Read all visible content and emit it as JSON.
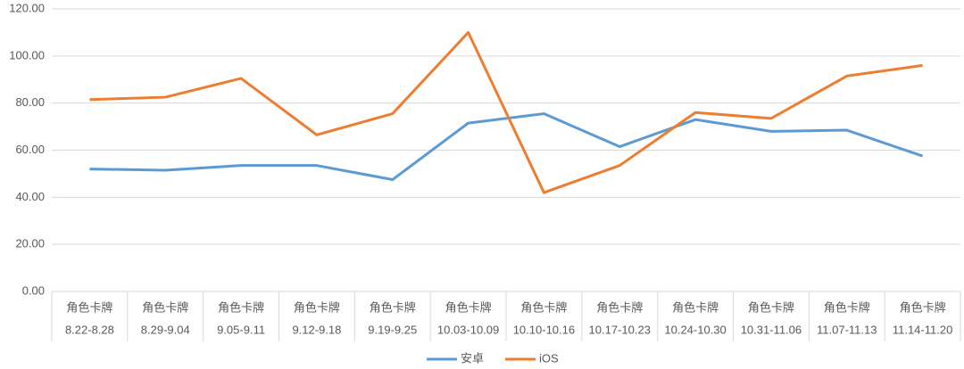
{
  "chart_data": {
    "type": "line",
    "categories": [
      [
        "角色卡牌",
        "8.22-8.28"
      ],
      [
        "角色卡牌",
        "8.29-9.04"
      ],
      [
        "角色卡牌",
        "9.05-9.11"
      ],
      [
        "角色卡牌",
        "9.12-9.18"
      ],
      [
        "角色卡牌",
        "9.19-9.25"
      ],
      [
        "角色卡牌",
        "10.03-10.09"
      ],
      [
        "角色卡牌",
        "10.10-10.16"
      ],
      [
        "角色卡牌",
        "10.17-10.23"
      ],
      [
        "角色卡牌",
        "10.24-10.30"
      ],
      [
        "角色卡牌",
        "10.31-11.06"
      ],
      [
        "角色卡牌",
        "11.07-11.13"
      ],
      [
        "角色卡牌",
        "11.14-11.20"
      ]
    ],
    "series": [
      {
        "name": "安卓",
        "color": "#5b9bd5",
        "values": [
          52,
          51.5,
          53.5,
          53.5,
          47.5,
          71.5,
          75.5,
          61.5,
          73,
          68,
          68.5,
          57.5
        ]
      },
      {
        "name": "iOS",
        "color": "#ed7d31",
        "values": [
          81.5,
          82.5,
          90.5,
          66.5,
          75.5,
          110,
          42,
          53.5,
          76,
          73.5,
          91.5,
          96
        ]
      }
    ],
    "ylim": [
      0,
      120
    ],
    "yticks": [
      {
        "value": 0,
        "label": "0.00"
      },
      {
        "value": 20,
        "label": "20.00"
      },
      {
        "value": 40,
        "label": "40.00"
      },
      {
        "value": 60,
        "label": "60.00"
      },
      {
        "value": 80,
        "label": "80.00"
      },
      {
        "value": 100,
        "label": "100.00"
      },
      {
        "value": 120,
        "label": "120.00"
      }
    ],
    "grid": true,
    "legend": "bottom"
  }
}
